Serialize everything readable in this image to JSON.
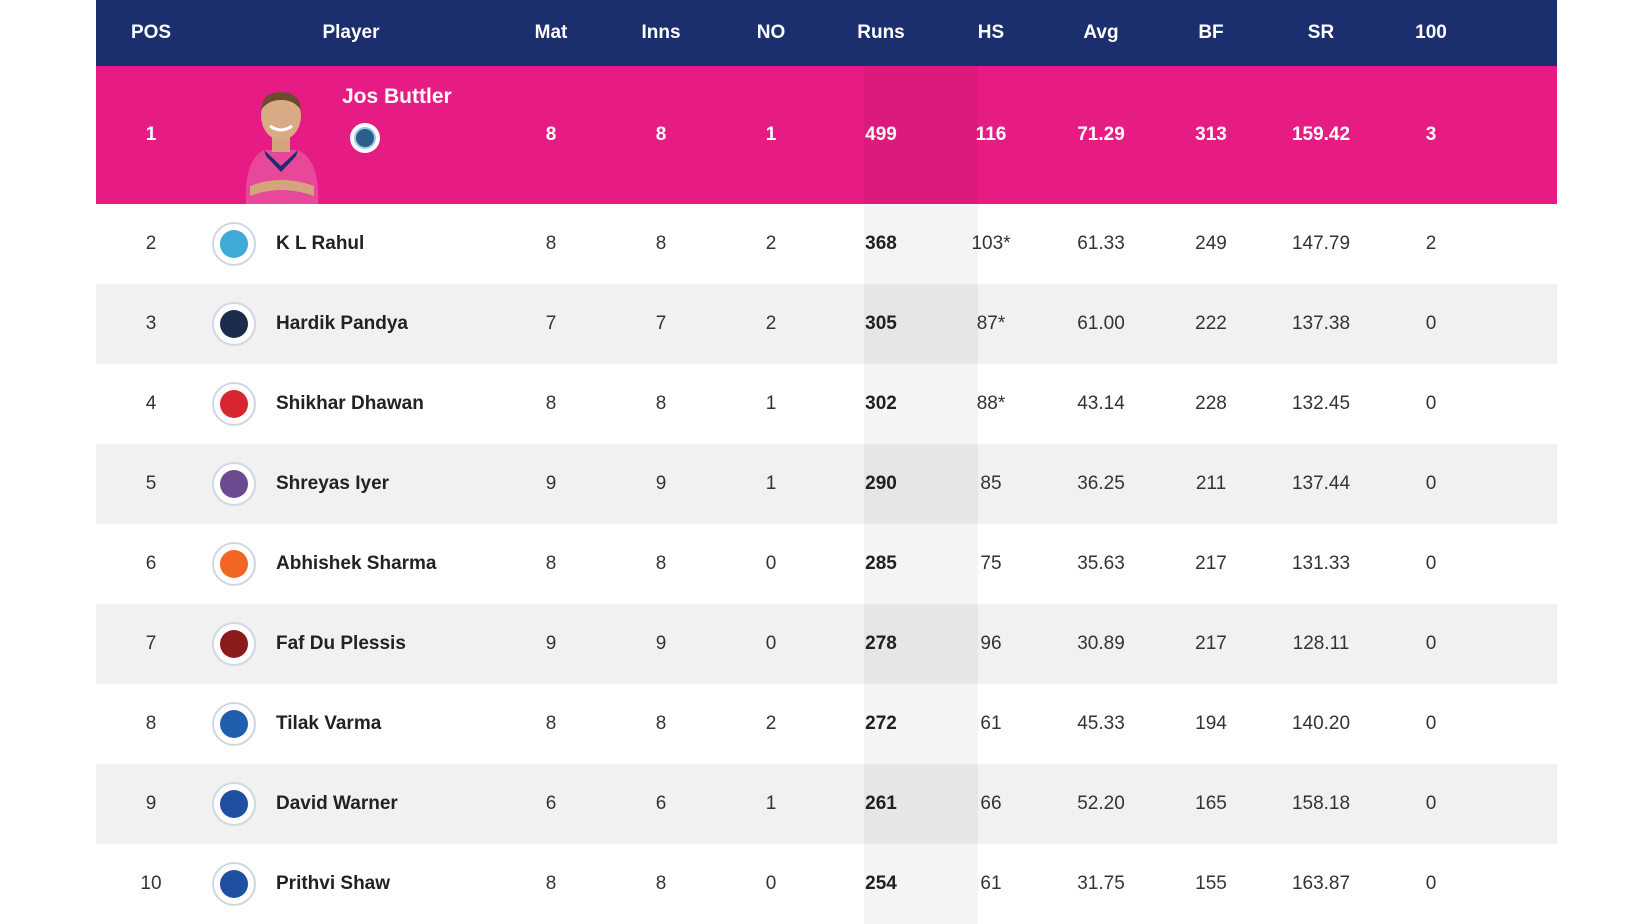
{
  "columns": [
    "POS",
    "Player",
    "Mat",
    "Inns",
    "NO",
    "Runs",
    "HS",
    "Avg",
    "BF",
    "SR",
    "100"
  ],
  "rows": [
    {
      "pos": "1",
      "player": "Jos Buttler",
      "mat": "8",
      "inns": "8",
      "no": "1",
      "runs": "499",
      "hs": "116",
      "avg": "71.29",
      "bf": "313",
      "sr": "159.42",
      "hundreds": "3",
      "team_icon": "rajasthan-royals-icon",
      "team_color": "#2a5f8c"
    },
    {
      "pos": "2",
      "player": "K L Rahul",
      "mat": "8",
      "inns": "8",
      "no": "2",
      "runs": "368",
      "hs": "103*",
      "avg": "61.33",
      "bf": "249",
      "sr": "147.79",
      "hundreds": "2",
      "team_icon": "lucknow-super-giants-icon",
      "team_color": "#3fa9d8"
    },
    {
      "pos": "3",
      "player": "Hardik Pandya",
      "mat": "7",
      "inns": "7",
      "no": "2",
      "runs": "305",
      "hs": "87*",
      "avg": "61.00",
      "bf": "222",
      "sr": "137.38",
      "hundreds": "0",
      "team_icon": "gujarat-titans-icon",
      "team_color": "#1c2c4c"
    },
    {
      "pos": "4",
      "player": "Shikhar Dhawan",
      "mat": "8",
      "inns": "8",
      "no": "1",
      "runs": "302",
      "hs": "88*",
      "avg": "43.14",
      "bf": "228",
      "sr": "132.45",
      "hundreds": "0",
      "team_icon": "punjab-kings-icon",
      "team_color": "#d7262d"
    },
    {
      "pos": "5",
      "player": "Shreyas Iyer",
      "mat": "9",
      "inns": "9",
      "no": "1",
      "runs": "290",
      "hs": "85",
      "avg": "36.25",
      "bf": "211",
      "sr": "137.44",
      "hundreds": "0",
      "team_icon": "kolkata-knight-riders-icon",
      "team_color": "#6b4a8f"
    },
    {
      "pos": "6",
      "player": "Abhishek Sharma",
      "mat": "8",
      "inns": "8",
      "no": "0",
      "runs": "285",
      "hs": "75",
      "avg": "35.63",
      "bf": "217",
      "sr": "131.33",
      "hundreds": "0",
      "team_icon": "sunrisers-hyderabad-icon",
      "team_color": "#f26522"
    },
    {
      "pos": "7",
      "player": "Faf Du Plessis",
      "mat": "9",
      "inns": "9",
      "no": "0",
      "runs": "278",
      "hs": "96",
      "avg": "30.89",
      "bf": "217",
      "sr": "128.11",
      "hundreds": "0",
      "team_icon": "royal-challengers-bangalore-icon",
      "team_color": "#8b1a1a"
    },
    {
      "pos": "8",
      "player": "Tilak Varma",
      "mat": "8",
      "inns": "8",
      "no": "2",
      "runs": "272",
      "hs": "61",
      "avg": "45.33",
      "bf": "194",
      "sr": "140.20",
      "hundreds": "0",
      "team_icon": "mumbai-indians-icon",
      "team_color": "#1f5fae"
    },
    {
      "pos": "9",
      "player": "David Warner",
      "mat": "6",
      "inns": "6",
      "no": "1",
      "runs": "261",
      "hs": "66",
      "avg": "52.20",
      "bf": "165",
      "sr": "158.18",
      "hundreds": "0",
      "team_icon": "delhi-capitals-icon",
      "team_color": "#1f4fa0"
    },
    {
      "pos": "10",
      "player": "Prithvi Shaw",
      "mat": "8",
      "inns": "8",
      "no": "0",
      "runs": "254",
      "hs": "61",
      "avg": "31.75",
      "bf": "155",
      "sr": "163.87",
      "hundreds": "0",
      "team_icon": "delhi-capitals-icon",
      "team_color": "#1f4fa0"
    }
  ],
  "colors": {
    "header": "#1b2f6e",
    "leader_row": "#e61c84",
    "alt_row": "#f1f1f1"
  }
}
